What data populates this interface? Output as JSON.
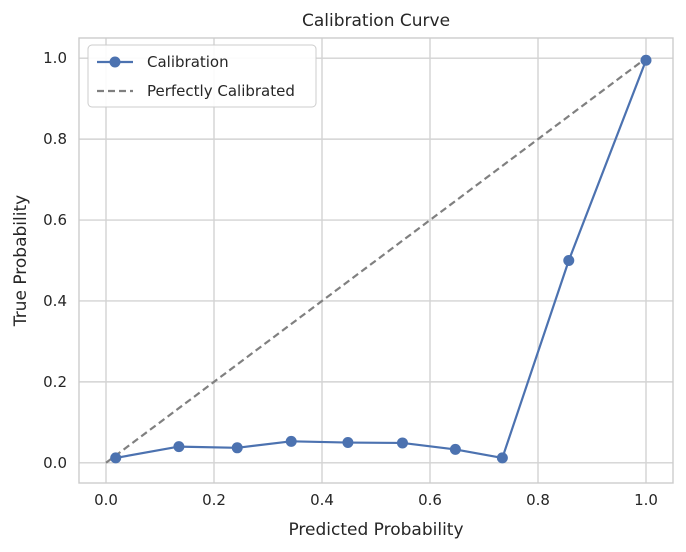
{
  "chart_data": {
    "type": "line",
    "title": "Calibration Curve",
    "xlabel": "Predicted Probability",
    "ylabel": "True Probability",
    "xlim": [
      -0.05,
      1.05
    ],
    "ylim": [
      -0.05,
      1.05
    ],
    "xticks": [
      "0.0",
      "0.2",
      "0.4",
      "0.6",
      "0.8",
      "1.0"
    ],
    "yticks": [
      "0.0",
      "0.2",
      "0.4",
      "0.6",
      "0.8",
      "1.0"
    ],
    "grid": true,
    "legend_position": "top-left",
    "series": [
      {
        "name": "Calibration",
        "color": "#4c72b0",
        "style": "solid",
        "marker": "circle",
        "x": [
          0.018,
          0.135,
          0.243,
          0.343,
          0.448,
          0.549,
          0.647,
          0.734,
          0.857,
          1.0
        ],
        "y": [
          0.012,
          0.04,
          0.037,
          0.053,
          0.05,
          0.049,
          0.033,
          0.012,
          0.5,
          0.995
        ]
      },
      {
        "name": "Perfectly Calibrated",
        "color": "#808080",
        "style": "dashed",
        "marker": "none",
        "x": [
          0.0,
          1.0
        ],
        "y": [
          0.0,
          1.0
        ]
      }
    ]
  }
}
